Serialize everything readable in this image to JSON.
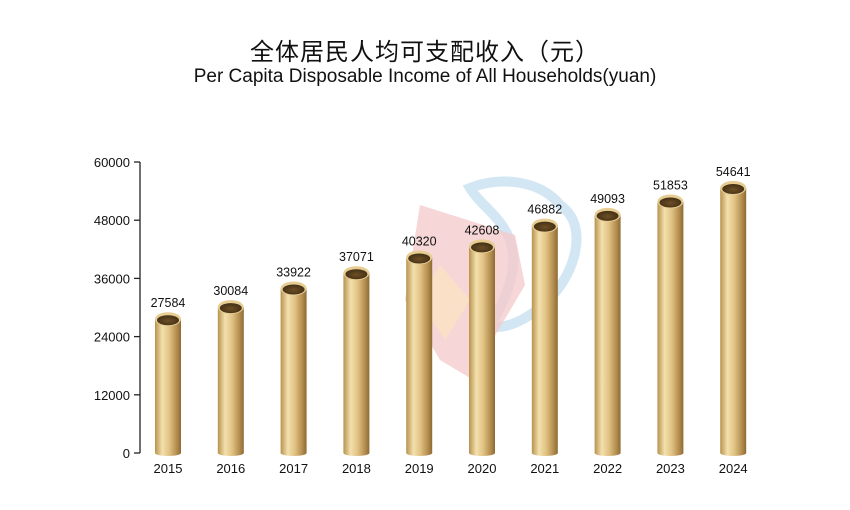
{
  "title_cn": "全体居民人均可支配收入（元）",
  "title_en": "Per Capita Disposable Income of All Households(yuan)",
  "colors": {
    "bar_light": "#f0dba7",
    "bar_mid": "#d8b672",
    "bar_dark": "#8e6a34",
    "axis": "#222222",
    "watermark_red": "#e58d8d",
    "watermark_blue": "#9cc8e8"
  },
  "chart_data": {
    "type": "bar",
    "title": "全体居民人均可支配收入（元）",
    "subtitle": "Per Capita Disposable Income of All Households(yuan)",
    "xlabel": "",
    "ylabel": "",
    "categories": [
      "2015",
      "2016",
      "2017",
      "2018",
      "2019",
      "2020",
      "2021",
      "2022",
      "2023",
      "2024"
    ],
    "values": [
      27584,
      30084,
      33922,
      37071,
      40320,
      42608,
      46882,
      49093,
      51853,
      54641
    ],
    "data_labels": [
      "27584",
      "30084",
      "33922",
      "37071",
      "40320",
      "42608",
      "46882",
      "49093",
      "51853",
      "54641"
    ],
    "ylim": [
      0,
      60000
    ],
    "yticks": [
      0,
      12000,
      24000,
      36000,
      48000,
      60000
    ],
    "ytick_labels": [
      "0",
      "12000",
      "24000",
      "36000",
      "48000",
      "60000"
    ],
    "grid": false,
    "legend": "none"
  }
}
